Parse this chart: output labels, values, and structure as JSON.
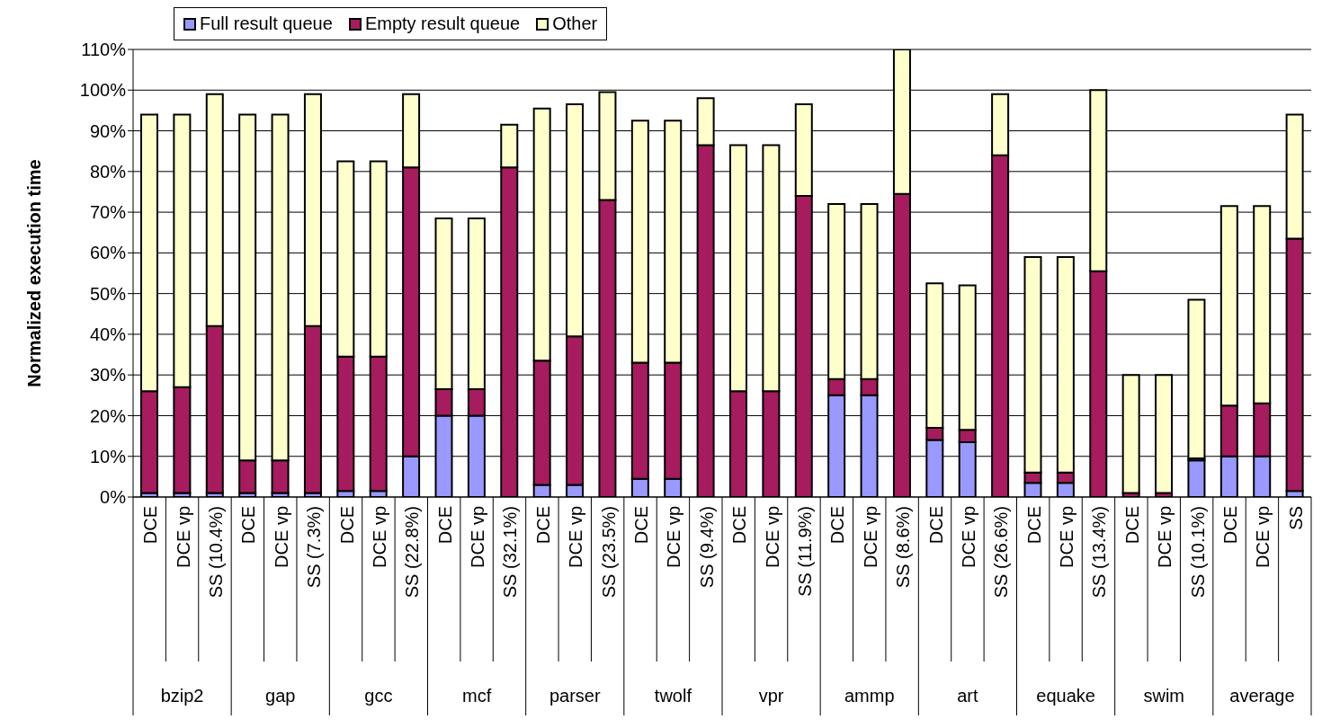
{
  "chart_data": {
    "type": "bar",
    "stacked": true,
    "ylabel": "Normalized execution time",
    "categories": [
      "DCE",
      "DCE vp",
      "SS (10.4%)",
      "DCE",
      "DCE vp",
      "SS (7.3%)",
      "DCE",
      "DCE vp",
      "SS (22.8%)",
      "DCE",
      "DCE vp",
      "SS (32.1%)",
      "DCE",
      "DCE vp",
      "SS (23.5%)",
      "DCE",
      "DCE vp",
      "SS (9.4%)",
      "DCE",
      "DCE vp",
      "SS (11.9%)",
      "DCE",
      "DCE vp",
      "SS (8.6%)",
      "DCE",
      "DCE vp",
      "SS (26.6%)",
      "DCE",
      "DCE vp",
      "SS (13.4%)",
      "DCE",
      "DCE vp",
      "SS (10.1%)",
      "DCE",
      "DCE vp",
      "SS"
    ],
    "series": [
      {
        "name": "Full result queue",
        "color": "#9999ff",
        "values": [
          1,
          1,
          1,
          1,
          1,
          1,
          1.5,
          1.5,
          10,
          20,
          20,
          0,
          3,
          3,
          0,
          4.5,
          4.5,
          0,
          null,
          null,
          0,
          25,
          25,
          0,
          14,
          13.5,
          0,
          3.5,
          3.5,
          0,
          0,
          0,
          9,
          10,
          10,
          1.5
        ]
      },
      {
        "name": "Empty result queue",
        "color": "#a61c5e",
        "values": [
          25,
          26,
          41,
          8,
          8,
          41,
          33,
          33,
          71,
          6.5,
          6.5,
          81,
          30.5,
          36.5,
          73,
          28.5,
          28.5,
          86.5,
          26,
          26,
          74,
          4,
          4,
          74.5,
          3,
          3,
          84,
          2.5,
          2.5,
          55.5,
          1,
          1,
          0.5,
          12.5,
          13,
          62
        ]
      },
      {
        "name": "Other",
        "color": "#ffffcc",
        "values": [
          68,
          67,
          57,
          85,
          85,
          57,
          48,
          48,
          18,
          42,
          42,
          10.5,
          62,
          57,
          26.5,
          59.5,
          59.5,
          11.5,
          60.5,
          60.5,
          22.5,
          43,
          43,
          35.5,
          35.5,
          35.5,
          15,
          53,
          53,
          44.5,
          29,
          29,
          39,
          49,
          48.5,
          30.5
        ]
      }
    ],
    "ylim": [
      0,
      110
    ],
    "yticks": [
      {
        "value": 0,
        "label": "0%"
      },
      {
        "value": 10,
        "label": "10%"
      },
      {
        "value": 20,
        "label": "20%"
      },
      {
        "value": 30,
        "label": "30%"
      },
      {
        "value": 40,
        "label": "40%"
      },
      {
        "value": 50,
        "label": "50%"
      },
      {
        "value": 60,
        "label": "60%"
      },
      {
        "value": 70,
        "label": "70%"
      },
      {
        "value": 80,
        "label": "80%"
      },
      {
        "value": 90,
        "label": "90%"
      },
      {
        "value": 100,
        "label": "100%"
      },
      {
        "value": 110,
        "label": "110%"
      }
    ],
    "grid": "y",
    "legend": "top left",
    "annotations": [
      "bzip2",
      "gap",
      "gcc",
      "mcf",
      "parser",
      "twolf",
      "vpr",
      "ammp",
      "art",
      "equake",
      "swim",
      "average"
    ]
  }
}
